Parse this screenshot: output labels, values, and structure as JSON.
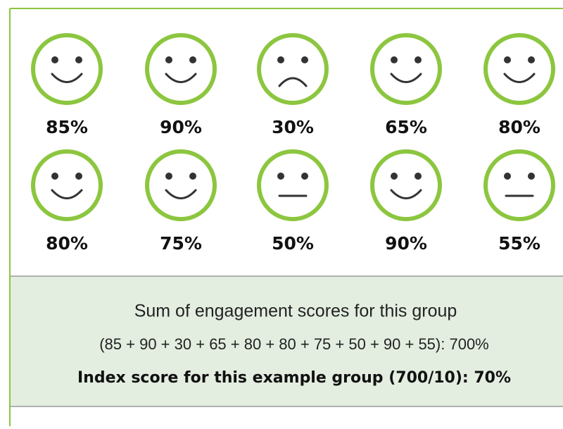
{
  "faces": [
    {
      "score": "85%",
      "face": "happy"
    },
    {
      "score": "90%",
      "face": "happy"
    },
    {
      "score": "30%",
      "face": "sad"
    },
    {
      "score": "65%",
      "face": "happy"
    },
    {
      "score": "80%",
      "face": "happy"
    },
    {
      "score": "80%",
      "face": "happy"
    },
    {
      "score": "75%",
      "face": "happy"
    },
    {
      "score": "50%",
      "face": "neutral"
    },
    {
      "score": "90%",
      "face": "happy"
    },
    {
      "score": "55%",
      "face": "neutral"
    }
  ],
  "summary": {
    "lines": [
      "Sum of engagement scores for this group",
      "(85 + 90 + 30 + 65 + 80 + 80 + 75 + 50 + 90 + 55): 700%",
      "Index score for this example group (700/10): 70%"
    ]
  }
}
